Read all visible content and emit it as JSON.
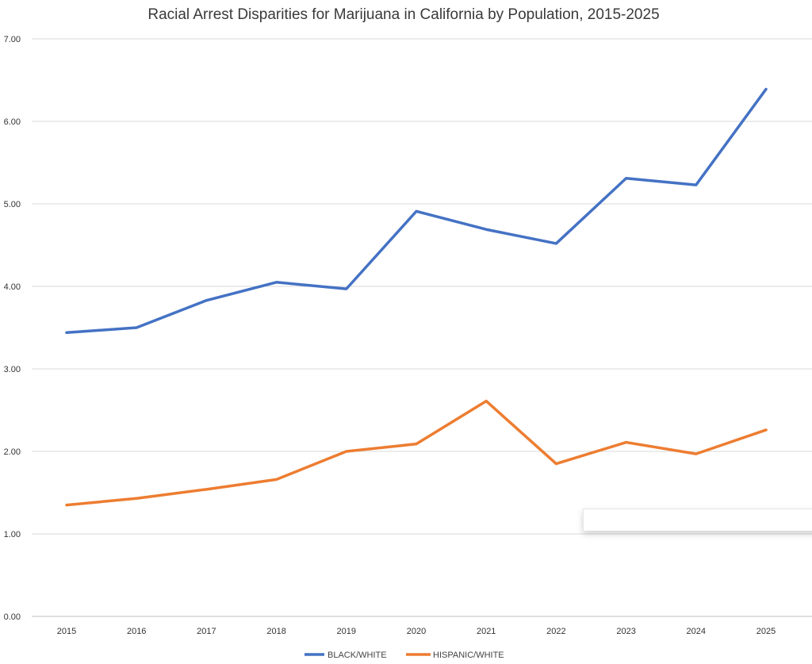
{
  "chart_data": {
    "type": "line",
    "title": "Racial Arrest Disparities for Marijuana in California by Population, 2015-2025",
    "xlabel": "",
    "ylabel": "",
    "categories": [
      "2015",
      "2016",
      "2017",
      "2018",
      "2019",
      "2020",
      "2021",
      "2022",
      "2023",
      "2024",
      "2025"
    ],
    "ylim": [
      0,
      7
    ],
    "yticks": [
      "0.00",
      "1.00",
      "2.00",
      "3.00",
      "4.00",
      "5.00",
      "6.00",
      "7.00"
    ],
    "grid": true,
    "legend_position": "bottom",
    "series": [
      {
        "name": "BLACK/WHITE",
        "color": "#4472C4",
        "values": [
          3.44,
          3.5,
          3.83,
          4.05,
          3.97,
          4.91,
          4.69,
          4.52,
          5.31,
          5.23,
          6.39
        ]
      },
      {
        "name": "HISPANIC/WHITE",
        "color": "#ED7D31",
        "values": [
          1.35,
          1.43,
          1.54,
          1.66,
          2.0,
          2.09,
          2.61,
          1.85,
          2.11,
          1.97,
          2.26
        ]
      }
    ]
  }
}
